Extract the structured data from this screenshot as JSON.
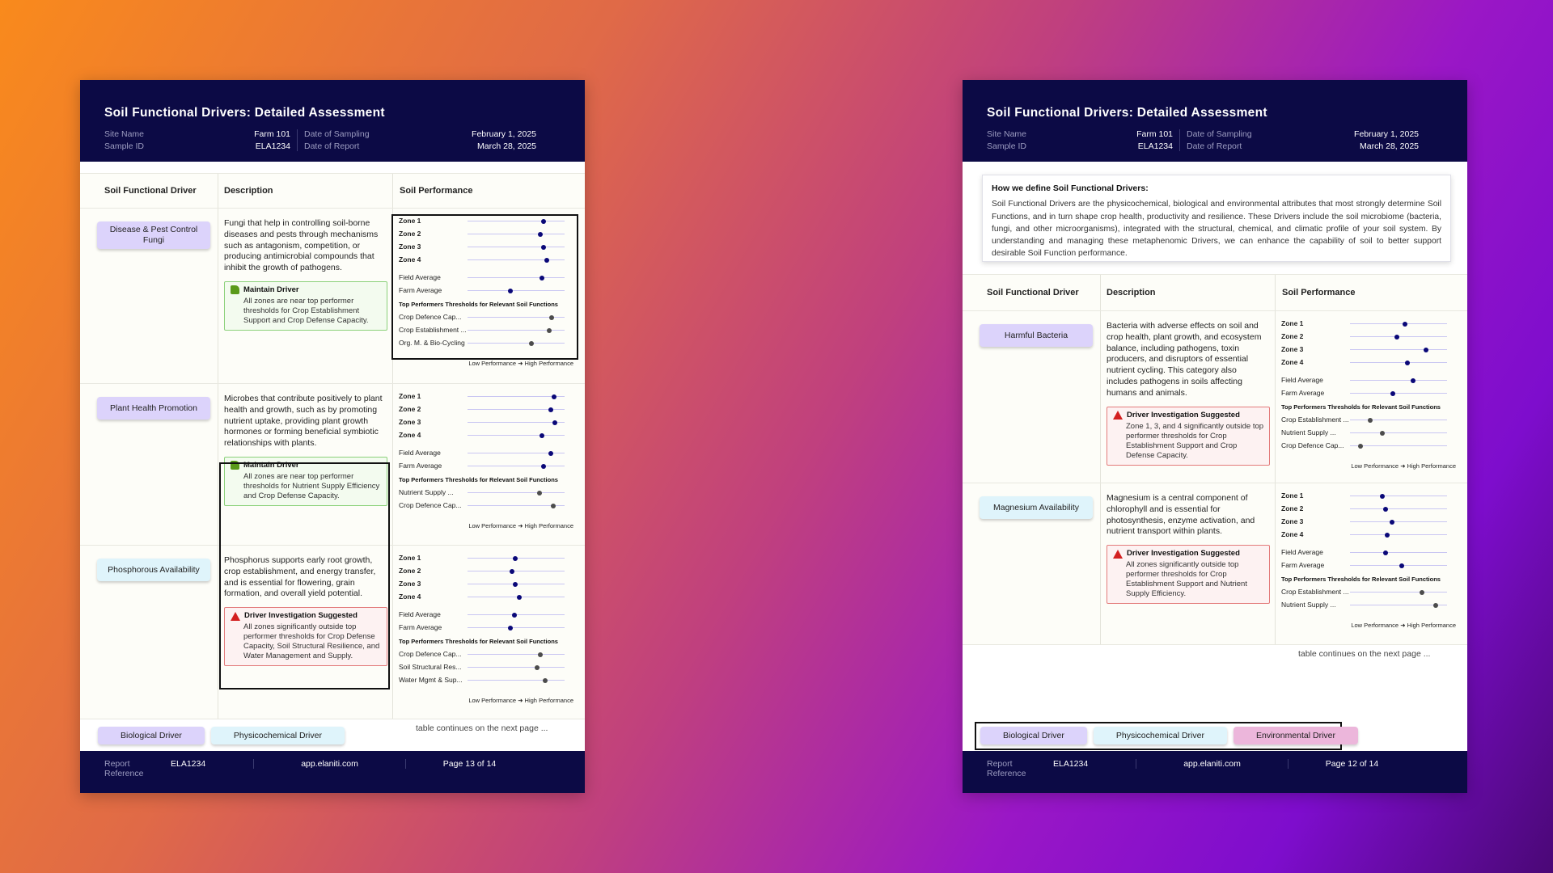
{
  "left": {
    "title": "Soil Functional Drivers: Detailed Assessment",
    "meta": {
      "site_name_label": "Site Name",
      "site_name": "Farm 101",
      "sample_id_label": "Sample ID",
      "sample_id": "ELA1234",
      "date_sampling_label": "Date of Sampling",
      "date_sampling": "February 1, 2025",
      "date_report_label": "Date of Report",
      "date_report": "March 28, 2025"
    },
    "headers": [
      "Soil Functional Driver",
      "Description",
      "Soil Performance"
    ],
    "rows": [
      {
        "driver": "Disease & Pest Control Fungi",
        "type": "bio",
        "description": "Fungi that help in controlling soil-borne diseases and pests through mechanisms such as antagonism, competition, or producing antimicrobial compounds that inhibit the growth of pathogens.",
        "callout": {
          "kind": "green",
          "title": "Maintain Driver",
          "text": "All zones are near top performer thresholds for Crop Establishment Support and Crop Defense Capacity."
        },
        "perf": {
          "zones": [
            {
              "label": "Zone 1",
              "value": 0.78
            },
            {
              "label": "Zone 2",
              "value": 0.75
            },
            {
              "label": "Zone 3",
              "value": 0.78
            },
            {
              "label": "Zone 4",
              "value": 0.82
            }
          ],
          "averages": [
            {
              "label": "Field Average",
              "value": 0.77
            },
            {
              "label": "Farm Average",
              "value": 0.44
            }
          ],
          "thresholds_title": "Top Performers Thresholds for Relevant Soil Functions",
          "thresholds": [
            {
              "label": "Crop Defence Cap...",
              "value": 0.87
            },
            {
              "label": "Crop Establishment ...",
              "value": 0.84
            },
            {
              "label": "Org. M. & Bio-Cycling",
              "value": 0.66
            }
          ],
          "legend": "Low Performance ➜ High Performance"
        }
      },
      {
        "driver": "Plant Health Promotion",
        "type": "bio",
        "description": "Microbes that contribute positively to plant health and growth, such as by promoting nutrient uptake, providing plant growth hormones or forming beneficial symbiotic relationships with plants.",
        "callout": {
          "kind": "green",
          "title": "Maintain Driver",
          "text": "All zones are near top performer thresholds for Nutrient Supply Efficiency and Crop Defense Capacity."
        },
        "perf": {
          "zones": [
            {
              "label": "Zone 1",
              "value": 0.89
            },
            {
              "label": "Zone 2",
              "value": 0.86
            },
            {
              "label": "Zone 3",
              "value": 0.9
            },
            {
              "label": "Zone 4",
              "value": 0.77
            }
          ],
          "averages": [
            {
              "label": "Field Average",
              "value": 0.86
            },
            {
              "label": "Farm Average",
              "value": 0.78
            }
          ],
          "thresholds_title": "Top Performers Thresholds for Relevant Soil Functions",
          "thresholds": [
            {
              "label": "Nutrient Supply ...",
              "value": 0.74
            },
            {
              "label": "Crop Defence Cap...",
              "value": 0.88
            }
          ],
          "legend": "Low Performance ➜ High Performance"
        }
      },
      {
        "driver": "Phosphorous Availability",
        "type": "phy",
        "description": "Phosphorus supports early root growth, crop establishment, and energy transfer, and is essential for flowering, grain formation, and overall yield potential.",
        "callout": {
          "kind": "red",
          "title": "Driver Investigation Suggested",
          "text": "All zones significantly outside top performer thresholds for Crop Defense Capacity, Soil Structural Resilience, and Water Management and Supply."
        },
        "perf": {
          "zones": [
            {
              "label": "Zone 1",
              "value": 0.49
            },
            {
              "label": "Zone 2",
              "value": 0.46
            },
            {
              "label": "Zone 3",
              "value": 0.49
            },
            {
              "label": "Zone 4",
              "value": 0.53
            }
          ],
          "averages": [
            {
              "label": "Field Average",
              "value": 0.48
            },
            {
              "label": "Farm Average",
              "value": 0.44
            }
          ],
          "thresholds_title": "Top Performers Thresholds for Relevant Soil Functions",
          "thresholds": [
            {
              "label": "Crop Defence Cap...",
              "value": 0.75
            },
            {
              "label": "Soil Structural Res...",
              "value": 0.72
            },
            {
              "label": "Water Mgmt & Sup...",
              "value": 0.8
            }
          ],
          "legend": "Low Performance ➜ High Performance"
        }
      }
    ],
    "bottom_legend": [
      "Biological Driver",
      "Physicochemical Driver"
    ],
    "continues": "table continues on the next page ...",
    "footer": {
      "ref_label": "Report Reference",
      "ref": "ELA1234",
      "site": "app.elaniti.com",
      "page": "Page 13 of 14"
    }
  },
  "right": {
    "title": "Soil Functional Drivers: Detailed Assessment",
    "meta": {
      "site_name_label": "Site Name",
      "site_name": "Farm 101",
      "sample_id_label": "Sample ID",
      "sample_id": "ELA1234",
      "date_sampling_label": "Date of Sampling",
      "date_sampling": "February 1, 2025",
      "date_report_label": "Date of Report",
      "date_report": "March 28, 2025"
    },
    "intro": {
      "title": "How we define Soil Functional Drivers:",
      "text": "Soil Functional Drivers are the physicochemical, biological and environmental attributes that most strongly determine Soil Functions, and in turn shape crop health, productivity and resilience. These Drivers include the soil microbiome (bacteria, fungi, and other microorganisms), integrated with the structural, chemical, and climatic profile of your soil system. By understanding and managing these metaphenomic Drivers, we can enhance the capability of soil to better support desirable Soil Function performance."
    },
    "headers": [
      "Soil Functional Driver",
      "Description",
      "Soil Performance"
    ],
    "rows": [
      {
        "driver": "Harmful Bacteria",
        "type": "bio",
        "description": "Bacteria with adverse effects on soil and crop health, plant growth, and ecosystem balance, including pathogens, toxin producers, and disruptors of essential nutrient cycling. This category also includes pathogens in soils affecting humans and animals.",
        "callout": {
          "kind": "red",
          "title": "Driver Investigation Suggested",
          "text": "Zone 1, 3, and 4 significantly outside top performer thresholds for Crop Establishment Support and Crop Defense Capacity."
        },
        "perf": {
          "zones": [
            {
              "label": "Zone 1",
              "value": 0.57
            },
            {
              "label": "Zone 2",
              "value": 0.48
            },
            {
              "label": "Zone 3",
              "value": 0.78
            },
            {
              "label": "Zone 4",
              "value": 0.59
            }
          ],
          "averages": [
            {
              "label": "Field Average",
              "value": 0.65
            },
            {
              "label": "Farm Average",
              "value": 0.44
            }
          ],
          "thresholds_title": "Top Performers Thresholds for Relevant Soil Functions",
          "thresholds": [
            {
              "label": "Crop Establishment ...",
              "value": 0.21
            },
            {
              "label": "Nutrient Supply ...",
              "value": 0.33
            },
            {
              "label": "Crop Defence Cap...",
              "value": 0.11
            }
          ],
          "legend": "Low Performance ➜ High Performance"
        }
      },
      {
        "driver": "Magnesium Availability",
        "type": "phy",
        "description": "Magnesium is a central component of chlorophyll and is essential for photosynthesis, enzyme activation, and nutrient transport within plants.",
        "callout": {
          "kind": "red",
          "title": "Driver Investigation Suggested",
          "text": "All zones significantly outside top performer thresholds for Crop Establishment Support and Nutrient Supply Efficiency."
        },
        "perf": {
          "zones": [
            {
              "label": "Zone 1",
              "value": 0.33
            },
            {
              "label": "Zone 2",
              "value": 0.37
            },
            {
              "label": "Zone 3",
              "value": 0.43
            },
            {
              "label": "Zone 4",
              "value": 0.38
            }
          ],
          "averages": [
            {
              "label": "Field Average",
              "value": 0.37
            },
            {
              "label": "Farm Average",
              "value": 0.53
            }
          ],
          "thresholds_title": "Top Performers Thresholds for Relevant Soil Functions",
          "thresholds": [
            {
              "label": "Crop Establishment ...",
              "value": 0.74
            },
            {
              "label": "Nutrient Supply ...",
              "value": 0.88
            }
          ],
          "legend": "Low Performance ➜ High Performance"
        }
      }
    ],
    "bottom_legend": [
      "Biological Driver",
      "Physicochemical Driver",
      "Environmental Driver"
    ],
    "continues": "table continues on the next page ...",
    "footer": {
      "ref_label": "Report Reference",
      "ref": "ELA1234",
      "site": "app.elaniti.com",
      "page": "Page 12 of 14"
    }
  }
}
